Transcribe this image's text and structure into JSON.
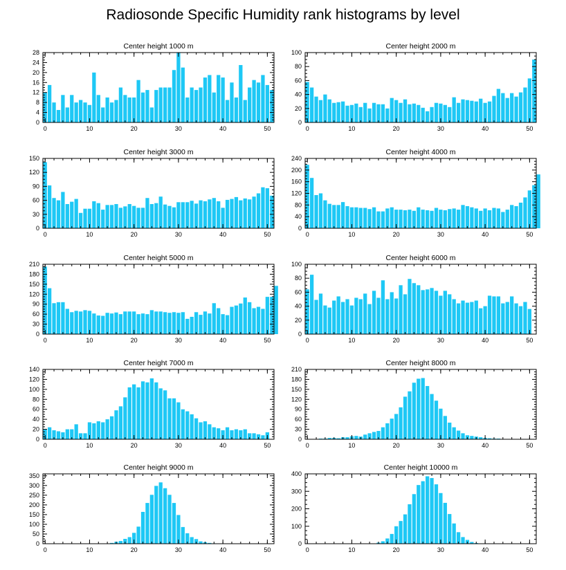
{
  "chart_data": {
    "type": "bar",
    "title": "Radiosonde Specific Humidity rank histograms by level",
    "colors": {
      "bar": "#1ec8f5",
      "axis": "#000000"
    },
    "panels": [
      {
        "title": "Center height 1000 m",
        "xlim": [
          -0.5,
          51.5
        ],
        "ylim": [
          0,
          28
        ],
        "xticks": [
          0,
          10,
          20,
          30,
          40,
          50
        ],
        "yticks": [
          0,
          4,
          8,
          12,
          16,
          20,
          24,
          28
        ],
        "values": [
          12,
          15,
          8,
          5,
          11,
          6,
          11,
          8,
          9,
          8,
          7,
          20,
          11,
          6,
          10,
          8,
          9,
          14,
          11,
          10,
          10,
          17,
          12,
          13,
          6,
          13,
          14,
          14,
          14,
          21,
          28,
          22,
          10,
          14,
          13,
          14,
          18,
          19,
          12,
          19,
          18,
          9,
          16,
          10,
          23,
          9,
          14,
          17,
          16,
          19,
          15,
          13
        ]
      },
      {
        "title": "Center height 2000 m",
        "xlim": [
          -0.5,
          51.5
        ],
        "ylim": [
          0,
          100
        ],
        "xticks": [
          0,
          10,
          20,
          30,
          40,
          50
        ],
        "yticks": [
          0,
          20,
          40,
          60,
          80,
          100
        ],
        "values": [
          58,
          50,
          37,
          32,
          40,
          33,
          28,
          29,
          30,
          24,
          25,
          27,
          22,
          28,
          20,
          28,
          26,
          26,
          20,
          35,
          32,
          28,
          33,
          26,
          27,
          25,
          21,
          16,
          22,
          28,
          27,
          25,
          22,
          36,
          28,
          33,
          32,
          31,
          30,
          34,
          28,
          30,
          38,
          48,
          42,
          35,
          42,
          37,
          43,
          50,
          63,
          90
        ]
      },
      {
        "title": "Center height 3000 m",
        "xlim": [
          -0.5,
          51.5
        ],
        "ylim": [
          0,
          150
        ],
        "xticks": [
          0,
          10,
          20,
          30,
          40,
          50
        ],
        "yticks": [
          0,
          30,
          60,
          90,
          120,
          150
        ],
        "values": [
          142,
          92,
          65,
          60,
          78,
          52,
          57,
          63,
          33,
          42,
          42,
          58,
          54,
          40,
          50,
          50,
          52,
          44,
          47,
          52,
          48,
          44,
          44,
          65,
          52,
          54,
          68,
          51,
          48,
          45,
          56,
          56,
          56,
          59,
          53,
          60,
          58,
          62,
          65,
          58,
          44,
          61,
          63,
          67,
          60,
          64,
          62,
          68,
          75,
          88,
          86,
          70
        ]
      },
      {
        "title": "Center height 4000 m",
        "xlim": [
          -0.5,
          51.5
        ],
        "ylim": [
          0,
          240
        ],
        "xticks": [
          0,
          10,
          20,
          30,
          40,
          50
        ],
        "yticks": [
          0,
          40,
          80,
          120,
          160,
          200,
          240
        ],
        "values": [
          218,
          173,
          114,
          120,
          96,
          84,
          80,
          80,
          90,
          76,
          72,
          72,
          70,
          70,
          66,
          72,
          58,
          58,
          68,
          72,
          64,
          64,
          62,
          64,
          60,
          72,
          64,
          62,
          60,
          70,
          64,
          62,
          66,
          68,
          64,
          80,
          76,
          72,
          68,
          60,
          68,
          62,
          70,
          68,
          56,
          64,
          80,
          76,
          88,
          106,
          130,
          148,
          185
        ]
      },
      {
        "title": "Center height 5000 m",
        "xlim": [
          -0.5,
          51.5
        ],
        "ylim": [
          0,
          210
        ],
        "xticks": [
          0,
          10,
          20,
          30,
          40,
          50
        ],
        "yticks": [
          0,
          30,
          60,
          90,
          120,
          150,
          180,
          210
        ],
        "values": [
          203,
          138,
          93,
          96,
          96,
          76,
          66,
          70,
          68,
          72,
          70,
          62,
          56,
          55,
          64,
          62,
          65,
          60,
          68,
          68,
          68,
          60,
          62,
          60,
          72,
          68,
          68,
          66,
          64,
          66,
          64,
          66,
          46,
          52,
          66,
          58,
          68,
          62,
          93,
          78,
          60,
          57,
          82,
          86,
          92,
          110,
          96,
          78,
          82,
          76,
          112,
          112,
          145
        ]
      },
      {
        "title": "Center height 6000 m",
        "xlim": [
          -0.5,
          51.5
        ],
        "ylim": [
          0,
          100
        ],
        "xticks": [
          0,
          10,
          20,
          30,
          40,
          50
        ],
        "yticks": [
          0,
          20,
          40,
          60,
          80,
          100
        ],
        "values": [
          64,
          85,
          49,
          58,
          41,
          38,
          48,
          54,
          46,
          50,
          41,
          52,
          50,
          58,
          43,
          62,
          52,
          77,
          50,
          60,
          51,
          70,
          57,
          79,
          73,
          70,
          63,
          64,
          66,
          62,
          55,
          62,
          57,
          50,
          44,
          48,
          45,
          46,
          48,
          37,
          40,
          55,
          54,
          54,
          44,
          46,
          54,
          44,
          40,
          46,
          36
        ]
      },
      {
        "title": "Center height 7000 m",
        "xlim": [
          -0.5,
          51.5
        ],
        "ylim": [
          0,
          140
        ],
        "xticks": [
          0,
          10,
          20,
          30,
          40,
          50
        ],
        "yticks": [
          0,
          20,
          40,
          60,
          80,
          100,
          120,
          140
        ],
        "values": [
          20,
          24,
          18,
          16,
          14,
          20,
          20,
          30,
          12,
          12,
          34,
          32,
          36,
          34,
          40,
          46,
          58,
          66,
          84,
          104,
          110,
          104,
          116,
          114,
          122,
          114,
          102,
          98,
          82,
          82,
          74,
          60,
          56,
          50,
          42,
          34,
          36,
          30,
          24,
          22,
          18,
          24,
          18,
          20,
          18,
          20,
          12,
          12,
          10,
          8,
          14
        ]
      },
      {
        "title": "Center height 8000 m",
        "xlim": [
          -0.5,
          51.5
        ],
        "ylim": [
          0,
          210
        ],
        "xticks": [
          0,
          10,
          20,
          30,
          40,
          50
        ],
        "yticks": [
          0,
          30,
          60,
          90,
          120,
          150,
          180,
          210
        ],
        "values": [
          0,
          0,
          1,
          2,
          2,
          4,
          4,
          3,
          6,
          6,
          9,
          10,
          8,
          14,
          18,
          22,
          25,
          36,
          48,
          62,
          76,
          96,
          128,
          144,
          170,
          182,
          184,
          160,
          136,
          116,
          92,
          70,
          50,
          36,
          26,
          18,
          12,
          10,
          8,
          6,
          4,
          3,
          2,
          2,
          1,
          1,
          0,
          0,
          0,
          0,
          0,
          0
        ]
      },
      {
        "title": "Center height 9000 m",
        "xlim": [
          -0.5,
          51.5
        ],
        "ylim": [
          0,
          360
        ],
        "xticks": [
          0,
          10,
          20,
          30,
          40,
          50
        ],
        "yticks": [
          0,
          50,
          100,
          150,
          200,
          250,
          300,
          350
        ],
        "values": [
          0,
          0,
          0,
          0,
          0,
          0,
          0,
          0,
          0,
          0,
          0,
          0,
          0,
          0,
          0,
          4,
          10,
          14,
          25,
          34,
          56,
          88,
          164,
          210,
          252,
          298,
          316,
          286,
          252,
          210,
          148,
          86,
          54,
          34,
          24,
          12,
          8,
          4,
          2,
          0,
          0,
          0,
          0,
          0,
          0,
          0,
          0,
          0,
          0,
          0,
          0,
          0
        ]
      },
      {
        "title": "Center height 10000 m",
        "xlim": [
          -0.5,
          51.5
        ],
        "ylim": [
          0,
          400
        ],
        "xticks": [
          0,
          10,
          20,
          30,
          40,
          50
        ],
        "yticks": [
          0,
          100,
          200,
          300,
          400
        ],
        "values": [
          0,
          0,
          0,
          0,
          0,
          0,
          0,
          0,
          0,
          0,
          0,
          0,
          0,
          0,
          0,
          0,
          6,
          14,
          30,
          56,
          100,
          130,
          168,
          226,
          284,
          336,
          358,
          386,
          376,
          340,
          290,
          234,
          170,
          116,
          66,
          38,
          22,
          10,
          4,
          2,
          0,
          0,
          0,
          0,
          0,
          0,
          0,
          0,
          0,
          0,
          0,
          0
        ]
      }
    ]
  }
}
